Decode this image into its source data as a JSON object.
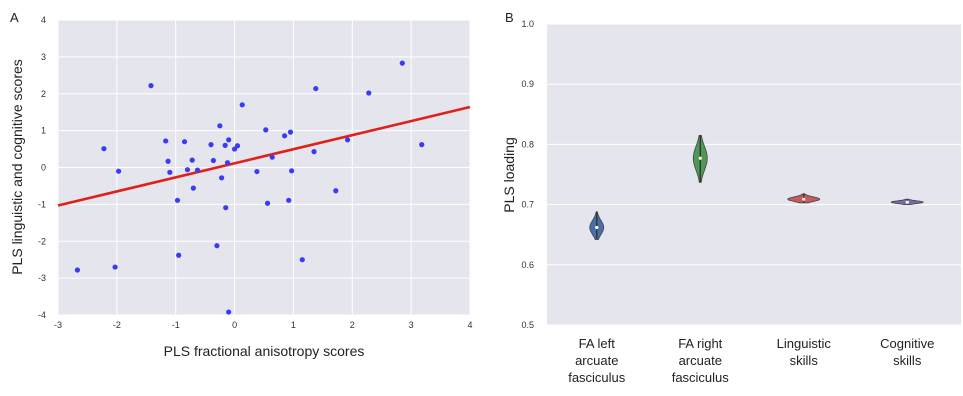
{
  "chart_data": [
    {
      "type": "scatter",
      "panel_label": "A",
      "xlabel": "PLS fractional anisotropy scores",
      "ylabel": "PLS linguistic and cognitive scores",
      "xlim": [
        -3,
        4
      ],
      "ylim": [
        -4,
        4
      ],
      "xticks": [
        "-3",
        "-2",
        "-1",
        "0",
        "1",
        "2",
        "3",
        "4"
      ],
      "yticks": [
        "-4",
        "-3",
        "-2",
        "-1",
        "0",
        "1",
        "2",
        "3",
        "4"
      ],
      "grid": true,
      "background": "#e5e5ee",
      "point_color": "#3b3bf5",
      "line_color": "#e0201a",
      "fit_line": {
        "x": [
          -3,
          4
        ],
        "y": [
          -1.03,
          1.64
        ]
      },
      "points": [
        {
          "x": -2.67,
          "y": -2.78
        },
        {
          "x": -2.22,
          "y": 0.51
        },
        {
          "x": -2.03,
          "y": -2.7
        },
        {
          "x": -1.97,
          "y": -0.1
        },
        {
          "x": -1.42,
          "y": 2.22
        },
        {
          "x": -1.17,
          "y": 0.72
        },
        {
          "x": -1.13,
          "y": 0.17
        },
        {
          "x": -1.1,
          "y": -0.13
        },
        {
          "x": -0.97,
          "y": -0.89
        },
        {
          "x": -0.95,
          "y": -2.38
        },
        {
          "x": -0.85,
          "y": 0.7
        },
        {
          "x": -0.8,
          "y": -0.06
        },
        {
          "x": -0.72,
          "y": 0.2
        },
        {
          "x": -0.7,
          "y": -0.56
        },
        {
          "x": -0.63,
          "y": -0.07
        },
        {
          "x": -0.4,
          "y": 0.62
        },
        {
          "x": -0.36,
          "y": 0.19
        },
        {
          "x": -0.3,
          "y": -2.12
        },
        {
          "x": -0.25,
          "y": 1.13
        },
        {
          "x": -0.22,
          "y": -0.28
        },
        {
          "x": -0.16,
          "y": 0.6
        },
        {
          "x": -0.15,
          "y": -1.09
        },
        {
          "x": -0.1,
          "y": 0.75
        },
        {
          "x": -0.12,
          "y": 0.13
        },
        {
          "x": -0.1,
          "y": -3.92
        },
        {
          "x": 0.0,
          "y": 0.5
        },
        {
          "x": 0.05,
          "y": 0.59
        },
        {
          "x": 0.13,
          "y": 1.7
        },
        {
          "x": 0.38,
          "y": -0.11
        },
        {
          "x": 0.53,
          "y": 1.02
        },
        {
          "x": 0.56,
          "y": -0.97
        },
        {
          "x": 0.64,
          "y": 0.28
        },
        {
          "x": 0.85,
          "y": 0.86
        },
        {
          "x": 0.92,
          "y": -0.89
        },
        {
          "x": 0.95,
          "y": 0.96
        },
        {
          "x": 0.97,
          "y": -0.09
        },
        {
          "x": 1.15,
          "y": -2.5
        },
        {
          "x": 1.35,
          "y": 0.43
        },
        {
          "x": 1.38,
          "y": 2.14
        },
        {
          "x": 1.72,
          "y": -0.63
        },
        {
          "x": 1.92,
          "y": 0.75
        },
        {
          "x": 2.28,
          "y": 2.02
        },
        {
          "x": 2.85,
          "y": 2.83
        },
        {
          "x": 3.18,
          "y": 0.62
        }
      ]
    },
    {
      "type": "violin",
      "panel_label": "B",
      "ylabel": "PLS loading",
      "ylim": [
        0.5,
        1.0
      ],
      "yticks": [
        "0.5",
        "0.6",
        "0.7",
        "0.8",
        "0.9",
        "1.0"
      ],
      "grid": true,
      "background": "#e5e5ee",
      "categories": [
        [
          "FA left",
          "arcuate",
          "fasciculus"
        ],
        [
          "FA right",
          "arcuate",
          "fasciculus"
        ],
        [
          "Linguistic",
          "skills"
        ],
        [
          "Cognitive",
          "skills"
        ]
      ],
      "violins": [
        {
          "median": 0.662,
          "min": 0.642,
          "max": 0.688,
          "color": "#4a6fa8"
        },
        {
          "median": 0.777,
          "min": 0.737,
          "max": 0.815,
          "color": "#4e9a55"
        },
        {
          "median": 0.709,
          "min": 0.703,
          "max": 0.718,
          "color": "#c85a5a"
        },
        {
          "median": 0.704,
          "min": 0.7,
          "max": 0.709,
          "color": "#7a6aa8"
        }
      ]
    }
  ]
}
